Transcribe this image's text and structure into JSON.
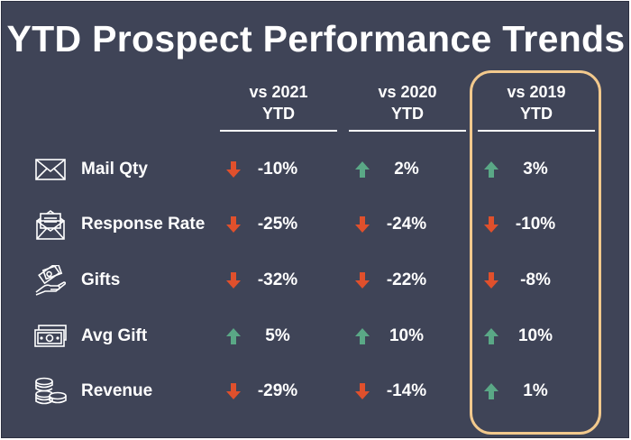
{
  "title": "YTD Prospect Performance Trends",
  "columns": [
    {
      "line1": "vs 2021",
      "line2": "YTD"
    },
    {
      "line1": "vs 2020",
      "line2": "YTD"
    },
    {
      "line1": "vs 2019",
      "line2": "YTD"
    }
  ],
  "colors": {
    "background": "#3f4457",
    "up_arrow": "#5aa886",
    "down_arrow": "#e0502c",
    "highlight_border": "#f2c98d"
  },
  "rows": [
    {
      "label": "Mail Qty",
      "icon": "envelope-icon",
      "cells": [
        {
          "dir": "down",
          "value": "-10%"
        },
        {
          "dir": "up",
          "value": "2%"
        },
        {
          "dir": "up",
          "value": "3%"
        }
      ]
    },
    {
      "label": "Response Rate",
      "icon": "open-mail-icon",
      "cells": [
        {
          "dir": "down",
          "value": "-25%"
        },
        {
          "dir": "down",
          "value": "-24%"
        },
        {
          "dir": "down",
          "value": "-10%"
        }
      ]
    },
    {
      "label": "Gifts",
      "icon": "hand-money-icon",
      "cells": [
        {
          "dir": "down",
          "value": "-32%"
        },
        {
          "dir": "down",
          "value": "-22%"
        },
        {
          "dir": "down",
          "value": "-8%"
        }
      ]
    },
    {
      "label": "Avg Gift",
      "icon": "banknotes-icon",
      "cells": [
        {
          "dir": "up",
          "value": "5%"
        },
        {
          "dir": "up",
          "value": "10%"
        },
        {
          "dir": "up",
          "value": "10%"
        }
      ]
    },
    {
      "label": "Revenue",
      "icon": "coins-icon",
      "cells": [
        {
          "dir": "down",
          "value": "-29%"
        },
        {
          "dir": "down",
          "value": "-14%"
        },
        {
          "dir": "up",
          "value": "1%"
        }
      ]
    }
  ]
}
